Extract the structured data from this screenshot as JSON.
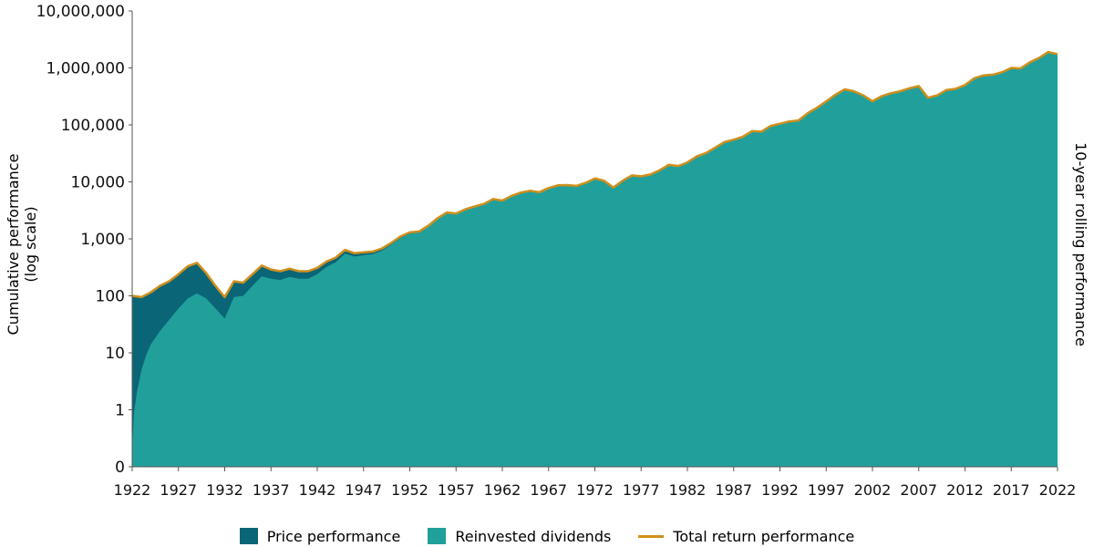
{
  "colors": {
    "price": "#0a6577",
    "dividends": "#21a09b",
    "total": "#d08f1c",
    "axis": "#555555"
  },
  "chart_data": {
    "type": "area",
    "title": "",
    "ylabel_line1": "Cumulative performance",
    "ylabel_line2": "(log scale)",
    "y2label": "10-year rolling performance",
    "y_scale": "log",
    "y_ticks": [
      {
        "value": 0.1,
        "label": "0"
      },
      {
        "value": 1,
        "label": "1"
      },
      {
        "value": 10,
        "label": "10"
      },
      {
        "value": 100,
        "label": "100"
      },
      {
        "value": 1000,
        "label": "1,000"
      },
      {
        "value": 10000,
        "label": "10,000"
      },
      {
        "value": 100000,
        "label": "100,000"
      },
      {
        "value": 1000000,
        "label": "1,000,000"
      },
      {
        "value": 10000000,
        "label": "10,000,000"
      }
    ],
    "x_ticks": [
      "1922",
      "1927",
      "1932",
      "1937",
      "1942",
      "1947",
      "1952",
      "1957",
      "1962",
      "1967",
      "1972",
      "1977",
      "1982",
      "1987",
      "1992",
      "1997",
      "2002",
      "2007",
      "2012",
      "2017",
      "2022"
    ],
    "xlim": [
      1922,
      2022
    ],
    "series": [
      {
        "name": "Total return performance",
        "values": [
          [
            1922,
            100
          ],
          [
            1923,
            95
          ],
          [
            1924,
            115
          ],
          [
            1925,
            150
          ],
          [
            1926,
            180
          ],
          [
            1927,
            240
          ],
          [
            1928,
            330
          ],
          [
            1929,
            380
          ],
          [
            1930,
            250
          ],
          [
            1931,
            150
          ],
          [
            1932,
            95
          ],
          [
            1933,
            180
          ],
          [
            1934,
            170
          ],
          [
            1935,
            240
          ],
          [
            1936,
            340
          ],
          [
            1937,
            290
          ],
          [
            1938,
            270
          ],
          [
            1939,
            300
          ],
          [
            1940,
            270
          ],
          [
            1941,
            270
          ],
          [
            1942,
            310
          ],
          [
            1943,
            400
          ],
          [
            1944,
            470
          ],
          [
            1945,
            640
          ],
          [
            1946,
            560
          ],
          [
            1947,
            580
          ],
          [
            1948,
            600
          ],
          [
            1949,
            680
          ],
          [
            1950,
            850
          ],
          [
            1951,
            1100
          ],
          [
            1952,
            1300
          ],
          [
            1953,
            1350
          ],
          [
            1954,
            1700
          ],
          [
            1955,
            2300
          ],
          [
            1956,
            2900
          ],
          [
            1957,
            2800
          ],
          [
            1958,
            3300
          ],
          [
            1959,
            3700
          ],
          [
            1960,
            4100
          ],
          [
            1961,
            5000
          ],
          [
            1962,
            4700
          ],
          [
            1963,
            5700
          ],
          [
            1964,
            6500
          ],
          [
            1965,
            7000
          ],
          [
            1966,
            6600
          ],
          [
            1967,
            7800
          ],
          [
            1968,
            8700
          ],
          [
            1969,
            8800
          ],
          [
            1970,
            8500
          ],
          [
            1971,
            9600
          ],
          [
            1972,
            11500
          ],
          [
            1973,
            10500
          ],
          [
            1974,
            8000
          ],
          [
            1975,
            10500
          ],
          [
            1976,
            13000
          ],
          [
            1977,
            12500
          ],
          [
            1978,
            13500
          ],
          [
            1979,
            16000
          ],
          [
            1980,
            20000
          ],
          [
            1981,
            19000
          ],
          [
            1982,
            22000
          ],
          [
            1983,
            28000
          ],
          [
            1984,
            32000
          ],
          [
            1985,
            40000
          ],
          [
            1986,
            50000
          ],
          [
            1987,
            55000
          ],
          [
            1988,
            62000
          ],
          [
            1989,
            78000
          ],
          [
            1990,
            76000
          ],
          [
            1991,
            96000
          ],
          [
            1992,
            105000
          ],
          [
            1993,
            115000
          ],
          [
            1994,
            120000
          ],
          [
            1995,
            160000
          ],
          [
            1996,
            200000
          ],
          [
            1997,
            260000
          ],
          [
            1998,
            340000
          ],
          [
            1999,
            420000
          ],
          [
            2000,
            390000
          ],
          [
            2001,
            330000
          ],
          [
            2002,
            260000
          ],
          [
            2003,
            320000
          ],
          [
            2004,
            360000
          ],
          [
            2005,
            390000
          ],
          [
            2006,
            440000
          ],
          [
            2007,
            480000
          ],
          [
            2008,
            300000
          ],
          [
            2009,
            330000
          ],
          [
            2010,
            410000
          ],
          [
            2011,
            430000
          ],
          [
            2012,
            500000
          ],
          [
            2013,
            660000
          ],
          [
            2014,
            740000
          ],
          [
            2015,
            760000
          ],
          [
            2016,
            840000
          ],
          [
            2017,
            1000000
          ],
          [
            2018,
            980000
          ],
          [
            2019,
            1250000
          ],
          [
            2020,
            1500000
          ],
          [
            2021,
            1900000
          ],
          [
            2022,
            1750000
          ]
        ]
      },
      {
        "name": "Reinvested dividends",
        "values": [
          [
            1922,
            0.2
          ],
          [
            1922.2,
            0.9
          ],
          [
            1922.5,
            2
          ],
          [
            1923,
            5
          ],
          [
            1923.5,
            9
          ],
          [
            1924,
            14
          ],
          [
            1925,
            24
          ],
          [
            1926,
            38
          ],
          [
            1927,
            60
          ],
          [
            1928,
            90
          ],
          [
            1929,
            110
          ],
          [
            1930,
            90
          ],
          [
            1931,
            60
          ],
          [
            1932,
            40
          ],
          [
            1933,
            95
          ],
          [
            1934,
            100
          ],
          [
            1935,
            150
          ],
          [
            1936,
            220
          ],
          [
            1937,
            200
          ],
          [
            1938,
            190
          ],
          [
            1939,
            215
          ],
          [
            1940,
            200
          ],
          [
            1941,
            200
          ],
          [
            1942,
            240
          ],
          [
            1943,
            320
          ],
          [
            1944,
            390
          ],
          [
            1945,
            550
          ],
          [
            1946,
            490
          ],
          [
            1947,
            515
          ],
          [
            1948,
            540
          ],
          [
            1949,
            620
          ],
          [
            1950,
            790
          ],
          [
            1951,
            1030
          ],
          [
            1952,
            1230
          ],
          [
            1953,
            1290
          ],
          [
            1954,
            1630
          ],
          [
            1955,
            2220
          ],
          [
            1956,
            2820
          ],
          [
            1957,
            2730
          ],
          [
            1958,
            3230
          ],
          [
            1959,
            3640
          ],
          [
            1960,
            4030
          ],
          [
            1961,
            4930
          ],
          [
            1962,
            4640
          ],
          [
            1963,
            5640
          ],
          [
            1964,
            6440
          ],
          [
            1965,
            6940
          ],
          [
            1966,
            6540
          ],
          [
            1967,
            7740
          ],
          [
            1968,
            8640
          ],
          [
            1969,
            8740
          ],
          [
            1970,
            8450
          ],
          [
            1971,
            9550
          ],
          [
            1972,
            11450
          ],
          [
            1973,
            10450
          ],
          [
            1974,
            7960
          ],
          [
            1975,
            10450
          ],
          [
            1976,
            12950
          ],
          [
            1977,
            12450
          ],
          [
            1978,
            13450
          ],
          [
            1979,
            15950
          ],
          [
            1980,
            19950
          ],
          [
            1981,
            18950
          ],
          [
            1982,
            21900
          ],
          [
            1983,
            27900
          ],
          [
            1984,
            31900
          ],
          [
            1985,
            39900
          ],
          [
            1986,
            49800
          ],
          [
            1987,
            54800
          ],
          [
            1988,
            61800
          ],
          [
            1989,
            77700
          ],
          [
            1990,
            75700
          ],
          [
            1991,
            95600
          ],
          [
            1992,
            104600
          ],
          [
            1993,
            114500
          ],
          [
            1994,
            119500
          ],
          [
            1995,
            159300
          ],
          [
            1996,
            199100
          ],
          [
            1997,
            258900
          ],
          [
            1998,
            338500
          ],
          [
            1999,
            418000
          ],
          [
            2000,
            388000
          ],
          [
            2001,
            328500
          ],
          [
            2002,
            258800
          ],
          [
            2003,
            318600
          ],
          [
            2004,
            358400
          ],
          [
            2005,
            388200
          ],
          [
            2006,
            438000
          ],
          [
            2007,
            477800
          ],
          [
            2008,
            298600
          ],
          [
            2009,
            328500
          ],
          [
            2010,
            408100
          ],
          [
            2011,
            428000
          ],
          [
            2012,
            497700
          ],
          [
            2013,
            656900
          ],
          [
            2014,
            736600
          ],
          [
            2015,
            756400
          ],
          [
            2016,
            836000
          ],
          [
            2017,
            995000
          ],
          [
            2018,
            975100
          ],
          [
            2019,
            1244000
          ],
          [
            2020,
            1493000
          ],
          [
            2021,
            1891000
          ],
          [
            2022,
            1742000
          ]
        ]
      },
      {
        "name": "Price performance",
        "note": "band between reinvested dividends and total return"
      }
    ],
    "legend": [
      {
        "label": "Price performance",
        "kind": "box",
        "color": "#0a6577"
      },
      {
        "label": "Reinvested dividends",
        "kind": "box",
        "color": "#21a09b"
      },
      {
        "label": "Total return performance",
        "kind": "line",
        "color": "#d08f1c"
      }
    ],
    "legend_position": "bottom",
    "grid": false
  }
}
